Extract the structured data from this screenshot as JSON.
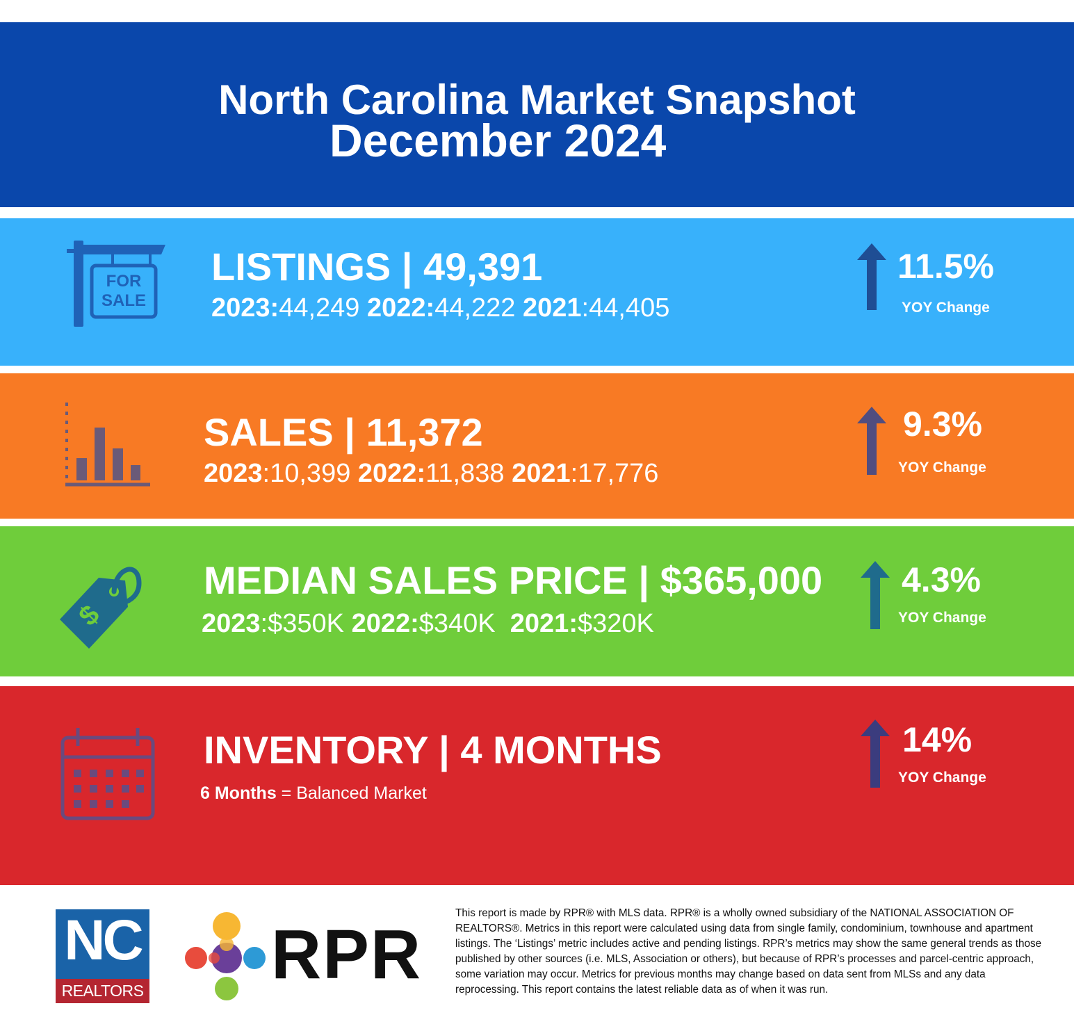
{
  "header": {
    "title": "North Carolina Market Snapshot",
    "subtitle": "December 2024"
  },
  "listings": {
    "headline": "LISTINGS | 49,391",
    "y2023_label": "2023:",
    "y2023_value": "44,249",
    "y2022_label": "2022:",
    "y2022_value": "44,222",
    "y2021_label": "2021",
    "y2021_value": ":44,405",
    "yoy_pct": "11.5%",
    "yoy_label": "YOY Change",
    "icon_text_1": "FOR",
    "icon_text_2": "SALE"
  },
  "sales": {
    "headline": "SALES | 11,372",
    "y2023_label": "2023",
    "y2023_value": ":10,399",
    "y2022_label": "2022:",
    "y2022_value": "11,838",
    "y2021_label": "2021",
    "y2021_value": ":17,776",
    "yoy_pct": "9.3%",
    "yoy_label": "YOY Change"
  },
  "median_price": {
    "headline": "MEDIAN SALES PRICE | $365,000",
    "y2023_label": "2023",
    "y2023_value": ":$350K",
    "y2022_label": "2022:",
    "y2022_value": "$340K",
    "y2021_label": "2021:",
    "y2021_value": "$320K",
    "yoy_pct": "4.3%",
    "yoy_label": "YOY Change"
  },
  "inventory": {
    "headline": "INVENTORY | 4 MONTHS",
    "note_bold": "6 Months",
    "note_rest": " = Balanced Market",
    "yoy_pct": "14%",
    "yoy_label": "YOY Change"
  },
  "footer": {
    "nc_logo_text": "NC",
    "nc_logo_sub": "REALTORS",
    "rpr_logo_text": "RPR",
    "disclaimer": "This report is made by RPR® with MLS data. RPR® is a wholly owned subsidiary of the NATIONAL ASSOCIATION OF REALTORS®. Metrics in this report were calculated using data from single family, condominium, townhouse and apartment listings. The ‘Listings’ metric includes active and pending listings. RPR’s metrics may show the same general trends as those published by other sources (i.e. MLS, Association or others), but because of RPR’s processes and parcel-centric approach, some variation may occur. Metrics for previous months may change based on data sent from MLSs and any data reprocessing. This report contains the latest reliable data as of when it was run."
  },
  "colors": {
    "header_blue": "#0a47ab",
    "listings_bg": "#38b1fb",
    "sales_bg": "#f87a24",
    "price_bg": "#6fcd3b",
    "inventory_bg": "#d9272c",
    "arrow": "#2a4f93"
  },
  "icons": [
    "for-sale-sign-icon",
    "bar-chart-icon",
    "price-tag-icon",
    "calendar-icon",
    "arrow-up-icon"
  ]
}
